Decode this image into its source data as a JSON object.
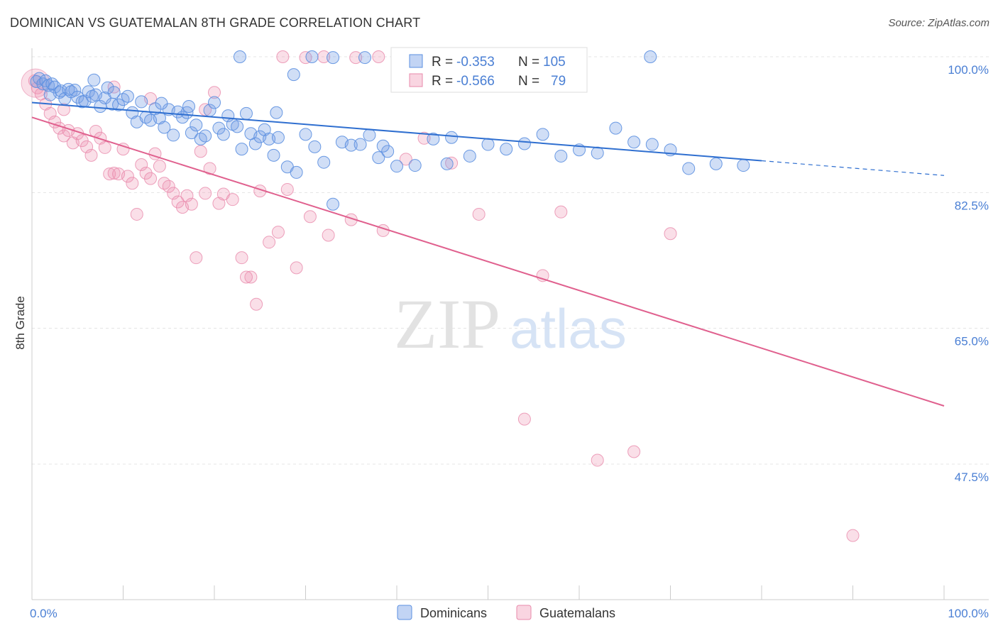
{
  "title": "DOMINICAN VS GUATEMALAN 8TH GRADE CORRELATION CHART",
  "source": "Source: ZipAtlas.com",
  "watermark": {
    "zip": "ZIP",
    "atlas": "atlas"
  },
  "colors": {
    "dominicans": "#5b8fe0",
    "dominicans_fill": "rgba(120,160,230,0.35)",
    "dominicans_line": "#2f6fd0",
    "guatemalans": "#e88aab",
    "guatemalans_fill": "rgba(240,150,180,0.30)",
    "guatemalans_line": "#e0608e",
    "accent_text": "#4a7fd4"
  },
  "legend": {
    "row1": {
      "r_label": "R =",
      "r_value": "-0.353",
      "n_label": "N =",
      "n_value": "105"
    },
    "row2": {
      "r_label": "R =",
      "r_value": "-0.566",
      "n_label": "N =",
      "n_value": "79"
    }
  },
  "chart_data": {
    "type": "scatter",
    "title": "DOMINICAN VS GUATEMALAN 8TH GRADE CORRELATION CHART",
    "xlabel": "",
    "ylabel": "8th Grade",
    "xlim": [
      0,
      100
    ],
    "ylim": [
      30,
      100.8
    ],
    "x_tick_labels": [
      "0.0%",
      "100.0%"
    ],
    "y_ticks": [
      47.5,
      65.0,
      82.5,
      100.0
    ],
    "y_tick_labels": [
      "47.5%",
      "65.0%",
      "82.5%",
      "100.0%"
    ],
    "grid": true,
    "legend_position": "top-center",
    "series": [
      {
        "name": "Dominicans",
        "R": -0.353,
        "N": 105,
        "trend": {
          "x": [
            0,
            80
          ],
          "y": [
            94.1,
            86.6
          ],
          "dashed_extension": {
            "x": [
              80,
              100
            ],
            "y": [
              86.6,
              84.7
            ]
          }
        },
        "points": [
          [
            0.5,
            96.8
          ],
          [
            0.8,
            97.2
          ],
          [
            1.2,
            96.5
          ],
          [
            1.5,
            96.9
          ],
          [
            1.8,
            96.3
          ],
          [
            2.2,
            96.5
          ],
          [
            2.5,
            96.1
          ],
          [
            3.0,
            95.4
          ],
          [
            3.2,
            95.6
          ],
          [
            3.6,
            94.6
          ],
          [
            4.0,
            95.8
          ],
          [
            4.3,
            95.5
          ],
          [
            4.7,
            95.7
          ],
          [
            5.0,
            94.8
          ],
          [
            5.5,
            94.2
          ],
          [
            5.8,
            94.3
          ],
          [
            6.2,
            95.5
          ],
          [
            6.6,
            94.9
          ],
          [
            7.0,
            95.1
          ],
          [
            7.5,
            93.6
          ],
          [
            8.0,
            94.7
          ],
          [
            8.3,
            96.0
          ],
          [
            8.8,
            93.9
          ],
          [
            9.0,
            95.4
          ],
          [
            9.5,
            93.8
          ],
          [
            10.0,
            94.5
          ],
          [
            10.5,
            94.9
          ],
          [
            11.0,
            92.8
          ],
          [
            11.5,
            91.6
          ],
          [
            12.0,
            94.2
          ],
          [
            12.5,
            92.2
          ],
          [
            13.0,
            91.8
          ],
          [
            13.5,
            93.3
          ],
          [
            14.0,
            92.1
          ],
          [
            14.5,
            90.9
          ],
          [
            15.0,
            93.2
          ],
          [
            15.5,
            89.9
          ],
          [
            16.0,
            92.9
          ],
          [
            16.5,
            92.2
          ],
          [
            17.0,
            92.8
          ],
          [
            17.5,
            90.2
          ],
          [
            18.0,
            91.2
          ],
          [
            18.5,
            89.4
          ],
          [
            19.0,
            89.8
          ],
          [
            19.5,
            93.1
          ],
          [
            20.0,
            94.1
          ],
          [
            20.5,
            90.8
          ],
          [
            21.0,
            90.0
          ],
          [
            21.5,
            92.4
          ],
          [
            22.0,
            91.3
          ],
          [
            22.5,
            91.0
          ],
          [
            23.0,
            88.1
          ],
          [
            23.5,
            92.7
          ],
          [
            24.0,
            90.1
          ],
          [
            24.5,
            88.8
          ],
          [
            25.0,
            89.7
          ],
          [
            25.5,
            90.6
          ],
          [
            26.0,
            89.4
          ],
          [
            26.5,
            87.3
          ],
          [
            27.0,
            89.6
          ],
          [
            28.0,
            85.8
          ],
          [
            29.0,
            85.1
          ],
          [
            30.0,
            90.0
          ],
          [
            31.0,
            88.4
          ],
          [
            32.0,
            86.4
          ],
          [
            33.0,
            81.0
          ],
          [
            34.0,
            89.0
          ],
          [
            35.0,
            88.6
          ],
          [
            36.0,
            88.7
          ],
          [
            37.0,
            89.9
          ],
          [
            38.0,
            87.0
          ],
          [
            39.0,
            87.8
          ],
          [
            40.0,
            85.9
          ],
          [
            42.0,
            86.0
          ],
          [
            44.0,
            89.4
          ],
          [
            46.0,
            89.6
          ],
          [
            48.0,
            87.2
          ],
          [
            50.0,
            88.7
          ],
          [
            52.0,
            88.1
          ],
          [
            54.0,
            88.8
          ],
          [
            56.0,
            90.0
          ],
          [
            58.0,
            87.2
          ],
          [
            60.0,
            88.0
          ],
          [
            62.0,
            87.6
          ],
          [
            64.0,
            90.8
          ],
          [
            66.0,
            89.0
          ],
          [
            68.0,
            88.7
          ],
          [
            70.0,
            88.0
          ],
          [
            72.0,
            85.6
          ],
          [
            75.0,
            86.2
          ],
          [
            78.0,
            86.0
          ],
          [
            2.0,
            95.1
          ],
          [
            6.8,
            97.0
          ],
          [
            14.2,
            94.0
          ],
          [
            17.2,
            93.6
          ],
          [
            26.8,
            92.8
          ],
          [
            28.7,
            97.7
          ],
          [
            22.8,
            100.0
          ],
          [
            30.7,
            100.0
          ],
          [
            36.5,
            99.9
          ],
          [
            44.2,
            100.0
          ],
          [
            33.0,
            99.9
          ],
          [
            67.8,
            100.0
          ],
          [
            38.5,
            88.5
          ],
          [
            45.5,
            86.2
          ]
        ]
      },
      {
        "name": "Guatemalans",
        "R": -0.566,
        "N": 79,
        "trend": {
          "x": [
            0,
            100
          ],
          "y": [
            92.2,
            55.0
          ]
        },
        "points": [
          [
            0.3,
            96.9
          ],
          [
            0.6,
            96.0
          ],
          [
            1.0,
            95.2
          ],
          [
            1.5,
            93.9
          ],
          [
            2.0,
            92.7
          ],
          [
            2.5,
            91.6
          ],
          [
            3.0,
            90.8
          ],
          [
            3.5,
            89.8
          ],
          [
            4.0,
            90.5
          ],
          [
            4.5,
            88.9
          ],
          [
            5.0,
            90.1
          ],
          [
            5.5,
            89.2
          ],
          [
            6.0,
            88.4
          ],
          [
            6.5,
            87.3
          ],
          [
            7.0,
            90.4
          ],
          [
            7.5,
            89.5
          ],
          [
            8.0,
            88.3
          ],
          [
            8.5,
            84.9
          ],
          [
            9.0,
            85.0
          ],
          [
            9.5,
            84.9
          ],
          [
            10.0,
            88.1
          ],
          [
            10.5,
            84.6
          ],
          [
            11.0,
            83.7
          ],
          [
            11.5,
            79.7
          ],
          [
            12.0,
            86.1
          ],
          [
            12.5,
            85.0
          ],
          [
            13.0,
            84.3
          ],
          [
            13.5,
            87.5
          ],
          [
            14.0,
            85.9
          ],
          [
            14.5,
            83.7
          ],
          [
            15.0,
            83.3
          ],
          [
            15.5,
            82.4
          ],
          [
            16.0,
            81.3
          ],
          [
            16.5,
            80.6
          ],
          [
            17.0,
            82.1
          ],
          [
            17.5,
            81.0
          ],
          [
            18.0,
            74.1
          ],
          [
            18.5,
            87.8
          ],
          [
            19.0,
            82.4
          ],
          [
            19.5,
            85.6
          ],
          [
            20.5,
            81.1
          ],
          [
            21.0,
            82.3
          ],
          [
            22.0,
            81.6
          ],
          [
            23.0,
            74.1
          ],
          [
            24.0,
            71.6
          ],
          [
            25.0,
            82.7
          ],
          [
            26.0,
            76.1
          ],
          [
            27.0,
            77.4
          ],
          [
            28.0,
            82.9
          ],
          [
            29.0,
            72.8
          ],
          [
            30.5,
            79.4
          ],
          [
            32.5,
            77.0
          ],
          [
            35.0,
            79.0
          ],
          [
            38.5,
            77.6
          ],
          [
            41.0,
            86.8
          ],
          [
            43.0,
            89.5
          ],
          [
            46.0,
            86.3
          ],
          [
            49.0,
            79.7
          ],
          [
            54.0,
            53.3
          ],
          [
            56.0,
            71.8
          ],
          [
            58.0,
            80.0
          ],
          [
            62.0,
            48.0
          ],
          [
            66.0,
            49.1
          ],
          [
            70.0,
            77.2
          ],
          [
            90.0,
            38.3
          ],
          [
            27.5,
            100.0
          ],
          [
            30.0,
            99.9
          ],
          [
            32.0,
            100.0
          ],
          [
            35.5,
            99.9
          ],
          [
            38.0,
            100.0
          ],
          [
            42.0,
            99.9
          ],
          [
            55.0,
            99.9
          ],
          [
            20.0,
            95.4
          ],
          [
            19.0,
            93.2
          ],
          [
            3.5,
            93.2
          ],
          [
            9.0,
            96.1
          ],
          [
            23.5,
            71.6
          ],
          [
            24.6,
            68.1
          ],
          [
            13.0,
            94.6
          ]
        ]
      }
    ]
  },
  "bottom_legend": {
    "item1": "Dominicans",
    "item2": "Guatemalans"
  }
}
